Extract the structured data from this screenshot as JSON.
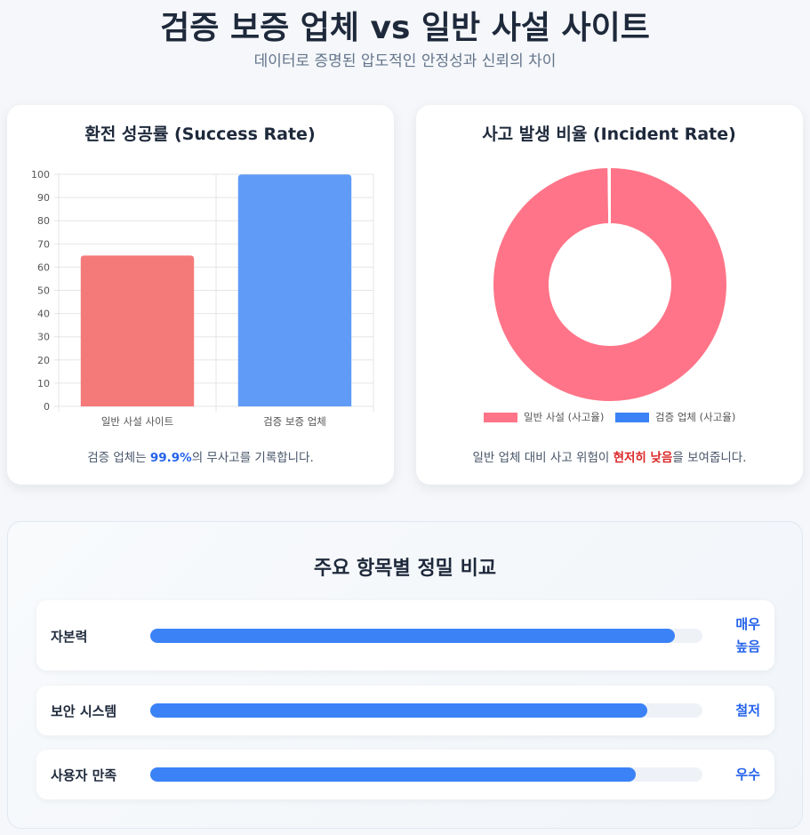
{
  "header": {
    "title": "검증 보증 업체 vs 일반 사설 사이트",
    "subtitle": "데이터로 증명된 압도적인 안정성과 신뢰의 차이"
  },
  "chart_data": [
    {
      "type": "bar",
      "title": "환전 성공률 (Success Rate)",
      "categories": [
        "일반 사설 사이트",
        "검증 보증 업체"
      ],
      "values": [
        65,
        99.9
      ],
      "colors": [
        "#f47a7a",
        "#5f9bf7"
      ],
      "ylim": [
        0,
        100
      ],
      "yticks": [
        0,
        10,
        20,
        30,
        40,
        50,
        60,
        70,
        80,
        90,
        100
      ],
      "grid": true
    },
    {
      "type": "pie",
      "title": "사고 발생 비율 (Incident Rate)",
      "categories": [
        "일반 사설 (사고율)",
        "검증 업체 (사고율)"
      ],
      "values": [
        99.8,
        0.2
      ],
      "colors": [
        "#ff7488",
        "#3b82f6"
      ],
      "hole": true,
      "legend": "bottom"
    }
  ],
  "notes": [
    [
      "검증 업체는 ",
      "99.9%",
      "의 무사고를 기록합니다."
    ],
    [
      "일반 업체 대비 사고 위험이 ",
      "현저히 낮음",
      "을 보여줍니다."
    ]
  ],
  "comparison": {
    "title": "주요 항목별 정밀 비교",
    "rows": [
      {
        "label": "자본력",
        "value": 95,
        "status": "매우 높음"
      },
      {
        "label": "보안 시스템",
        "value": 90,
        "status": "철저"
      },
      {
        "label": "사용자 만족",
        "value": 88,
        "status": "우수"
      }
    ]
  }
}
